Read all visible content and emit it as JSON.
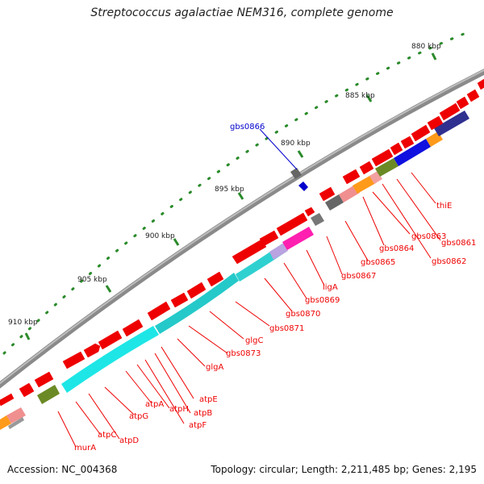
{
  "title": "Streptococcus agalactiae NEM316, complete genome",
  "accession_text": "Accession: NC_004368",
  "topology_text": "Topology: circular; Length: 2,211,485 bp; Genes: 2,195",
  "colors": {
    "backbone": "#8c8c8c",
    "tick": "#2a8a2a",
    "feature_red": "#ee0000",
    "highlight": "#0000cc"
  },
  "kbp_ticks": [
    "880 kbp",
    "885 kbp",
    "890 kbp",
    "895 kbp",
    "900 kbp",
    "905 kbp",
    "910 kbp"
  ],
  "highlighted_gene": "gbs0866",
  "gene_labels": [
    "thiE",
    "gbs0861",
    "gbs0862",
    "gbs0863",
    "gbs0864",
    "gbs0865",
    "gbs0867",
    "ligA",
    "gbs0869",
    "gbs0870",
    "gbs0871",
    "glgC",
    "gbs0873",
    "glgA",
    "atpE",
    "atpB",
    "atpF",
    "atpH",
    "atpA",
    "atpG",
    "atpD",
    "atpC",
    "murA"
  ]
}
